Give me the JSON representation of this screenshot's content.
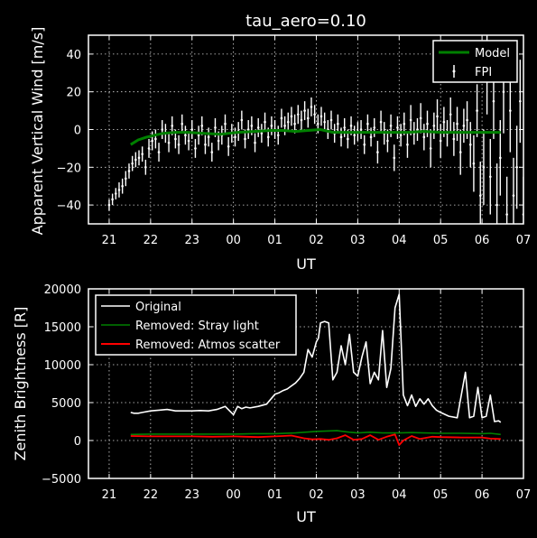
{
  "colors": {
    "background": "#000000",
    "foreground": "#ffffff",
    "model": "#008000",
    "fpi": "#ffffff",
    "original": "#ffffff",
    "stray": "#008000",
    "atmos": "#ff0000"
  },
  "chart_data": [
    {
      "type": "line",
      "title": "tau_aero=0.10",
      "xlabel": "UT",
      "ylabel": "Apparent Vertical Wind [m/s]",
      "xlim": [
        20.5,
        31
      ],
      "ylim": [
        -50,
        50
      ],
      "x_ticks": [
        21,
        22,
        23,
        24,
        25,
        26,
        27,
        28,
        29,
        30,
        31
      ],
      "x_tick_labels": [
        "21",
        "22",
        "23",
        "00",
        "01",
        "02",
        "03",
        "04",
        "05",
        "06",
        "07"
      ],
      "y_ticks": [
        -40,
        -20,
        0,
        20,
        40
      ],
      "y_tick_labels": [
        "−40",
        "−20",
        "0",
        "20",
        "40"
      ],
      "grid": true,
      "legend": "top-right",
      "legend_entries": [
        "Model",
        "FPI"
      ],
      "series": [
        {
          "name": "Model",
          "style": "line",
          "x": [
            21.52,
            21.7,
            21.9,
            22.1,
            22.3,
            22.6,
            22.9,
            23.3,
            23.7,
            24.1,
            24.5,
            24.9,
            25.2,
            25.5,
            25.8,
            26.1,
            26.4,
            26.7,
            27.0,
            27.4,
            27.8,
            28.2,
            28.6,
            29.0,
            29.4,
            29.8,
            30.2,
            30.45
          ],
          "y": [
            -8,
            -5.5,
            -4,
            -3,
            -2,
            -1.5,
            -1.5,
            -2,
            -2.5,
            -1.5,
            -1,
            -0.5,
            -0.5,
            -1,
            -0.5,
            0,
            -1.5,
            -1.5,
            -1.5,
            -1.5,
            -1.5,
            -1.5,
            -1,
            -1.5,
            -1.5,
            -1.5,
            -1.5,
            -1.5
          ]
        },
        {
          "name": "FPI",
          "style": "errorbar",
          "x": [
            21.0,
            21.08,
            21.16,
            21.24,
            21.32,
            21.4,
            21.48,
            21.56,
            21.64,
            21.72,
            21.8,
            21.88,
            21.96,
            22.04,
            22.12,
            22.2,
            22.28,
            22.36,
            22.44,
            22.52,
            22.6,
            22.68,
            22.76,
            22.84,
            22.92,
            23.0,
            23.08,
            23.16,
            23.24,
            23.32,
            23.4,
            23.48,
            23.56,
            23.64,
            23.72,
            23.8,
            23.88,
            23.96,
            24.04,
            24.12,
            24.2,
            24.28,
            24.36,
            24.44,
            24.52,
            24.6,
            24.68,
            24.76,
            24.84,
            24.92,
            25.0,
            25.08,
            25.16,
            25.24,
            25.32,
            25.4,
            25.48,
            25.56,
            25.64,
            25.72,
            25.8,
            25.88,
            25.96,
            26.04,
            26.12,
            26.2,
            26.28,
            26.36,
            26.44,
            26.52,
            26.6,
            26.68,
            26.76,
            26.84,
            26.92,
            27.0,
            27.08,
            27.16,
            27.24,
            27.32,
            27.4,
            27.48,
            27.56,
            27.64,
            27.72,
            27.8,
            27.88,
            27.96,
            28.04,
            28.12,
            28.2,
            28.28,
            28.36,
            28.44,
            28.52,
            28.6,
            28.68,
            28.76,
            28.84,
            28.92,
            29.0,
            29.08,
            29.16,
            29.24,
            29.32,
            29.4,
            29.48,
            29.56,
            29.64,
            29.72,
            29.8,
            29.88,
            29.96,
            30.04,
            30.12,
            30.2,
            30.28,
            30.36,
            30.44,
            30.52,
            30.6,
            30.68,
            30.76,
            30.84,
            30.92,
            31.0
          ],
          "y": [
            -40,
            -37,
            -34,
            -32,
            -30,
            -26,
            -22,
            -18,
            -16,
            -15,
            -13,
            -20,
            -10,
            -6,
            -5,
            -12,
            0,
            -2,
            -7,
            2,
            -5,
            -8,
            3,
            -3,
            -6,
            0,
            -10,
            -3,
            2,
            -8,
            -4,
            -12,
            1,
            -6,
            -3,
            3,
            -9,
            -2,
            -4,
            -1,
            5,
            -5,
            0,
            2,
            -7,
            1,
            -2,
            4,
            -4,
            2,
            0,
            -3,
            6,
            2,
            4,
            7,
            3,
            8,
            5,
            10,
            6,
            12,
            8,
            3,
            7,
            4,
            0,
            5,
            -2,
            3,
            -4,
            1,
            -5,
            2,
            -3,
            -1,
            0,
            -8,
            3,
            -4,
            1,
            -12,
            4,
            -2,
            -6,
            2,
            -15,
            1,
            -3,
            3,
            -8,
            5,
            -2,
            0,
            6,
            -4,
            3,
            -10,
            2,
            7,
            -6,
            4,
            -2,
            8,
            -5,
            3,
            -12,
            2,
            5,
            -8,
            -18,
            10,
            -35,
            -20,
            30,
            -25,
            15,
            -40,
            -15,
            20,
            -45,
            10,
            -35,
            -20,
            15,
            -45
          ],
          "err": [
            3,
            3,
            3,
            4,
            4,
            4,
            4,
            4,
            4,
            4,
            4,
            4,
            5,
            5,
            5,
            5,
            5,
            5,
            5,
            5,
            5,
            5,
            5,
            5,
            5,
            5,
            5,
            5,
            5,
            5,
            5,
            5,
            5,
            5,
            5,
            5,
            5,
            5,
            5,
            5,
            5,
            5,
            5,
            5,
            5,
            5,
            5,
            5,
            5,
            5,
            5,
            5,
            5,
            5,
            5,
            5,
            5,
            5,
            5,
            5,
            5,
            5,
            5,
            5,
            5,
            5,
            5,
            5,
            5,
            5,
            5,
            5,
            5,
            5,
            5,
            5,
            5,
            5,
            5,
            5,
            5,
            6,
            6,
            6,
            6,
            6,
            7,
            6,
            6,
            6,
            7,
            8,
            6,
            6,
            8,
            7,
            7,
            10,
            7,
            9,
            9,
            8,
            7,
            9,
            9,
            9,
            12,
            9,
            10,
            12,
            15,
            14,
            18,
            20,
            22,
            20,
            20,
            22,
            20,
            22,
            20,
            22,
            20,
            22,
            22,
            20
          ]
        }
      ]
    },
    {
      "type": "line",
      "title": "",
      "xlabel": "UT",
      "ylabel": "Zenith Brightness [R]",
      "xlim": [
        20.5,
        31
      ],
      "ylim": [
        -5000,
        20000
      ],
      "x_ticks": [
        21,
        22,
        23,
        24,
        25,
        26,
        27,
        28,
        29,
        30,
        31
      ],
      "x_tick_labels": [
        "21",
        "22",
        "23",
        "00",
        "01",
        "02",
        "03",
        "04",
        "05",
        "06",
        "07"
      ],
      "y_ticks": [
        -5000,
        0,
        5000,
        10000,
        15000,
        20000
      ],
      "y_tick_labels": [
        "−5000",
        "0",
        "5000",
        "10000",
        "15000",
        "20000"
      ],
      "grid": true,
      "legend": "top-left",
      "legend_entries": [
        "Original",
        "Removed: Stray light",
        "Removed: Atmos scatter"
      ],
      "series": [
        {
          "name": "Original",
          "x": [
            21.52,
            21.6,
            21.7,
            21.8,
            22.0,
            22.2,
            22.4,
            22.6,
            22.8,
            23.0,
            23.2,
            23.4,
            23.6,
            23.8,
            24.0,
            24.1,
            24.2,
            24.3,
            24.4,
            24.6,
            24.8,
            25.0,
            25.1,
            25.2,
            25.3,
            25.4,
            25.5,
            25.6,
            25.7,
            25.8,
            25.9,
            26.0,
            26.05,
            26.1,
            26.2,
            26.3,
            26.4,
            26.5,
            26.6,
            26.7,
            26.8,
            26.9,
            27.0,
            27.1,
            27.2,
            27.3,
            27.4,
            27.5,
            27.6,
            27.7,
            27.8,
            27.9,
            28.0,
            28.1,
            28.2,
            28.3,
            28.4,
            28.5,
            28.6,
            28.7,
            28.8,
            28.9,
            29.0,
            29.2,
            29.4,
            29.6,
            29.7,
            29.8,
            29.9,
            30.0,
            30.1,
            30.2,
            30.3,
            30.4,
            30.45
          ],
          "y": [
            3700,
            3600,
            3600,
            3700,
            3900,
            4000,
            4100,
            3900,
            3900,
            3900,
            3950,
            3900,
            4100,
            4500,
            3400,
            4500,
            4200,
            4400,
            4300,
            4500,
            4800,
            6100,
            6300,
            6600,
            6800,
            7200,
            7600,
            8200,
            9000,
            12000,
            11000,
            13000,
            13500,
            15500,
            15700,
            15500,
            8000,
            9000,
            12500,
            10000,
            14000,
            9000,
            8500,
            11000,
            13000,
            7500,
            9000,
            8000,
            14500,
            7000,
            9500,
            17500,
            19300,
            6000,
            4600,
            6000,
            4500,
            5500,
            4800,
            5500,
            4600,
            4000,
            3700,
            3200,
            3000,
            9000,
            3000,
            3200,
            7000,
            3000,
            3200,
            6000,
            2500,
            2600,
            2400
          ]
        },
        {
          "name": "Removed: Stray light",
          "x": [
            21.52,
            22.0,
            22.5,
            23.0,
            23.5,
            24.0,
            24.5,
            25.0,
            25.5,
            26.0,
            26.5,
            26.8,
            27.0,
            27.3,
            27.6,
            28.0,
            28.3,
            28.6,
            29.0,
            29.5,
            30.0,
            30.2,
            30.45
          ],
          "y": [
            800,
            850,
            850,
            850,
            850,
            850,
            900,
            900,
            1000,
            1200,
            1300,
            1100,
            1000,
            1100,
            1000,
            1000,
            1050,
            1000,
            950,
            950,
            900,
            950,
            800
          ]
        },
        {
          "name": "Removed: Atmos scatter",
          "x": [
            21.52,
            22.0,
            22.5,
            23.0,
            23.5,
            24.0,
            24.3,
            24.6,
            25.0,
            25.2,
            25.4,
            25.7,
            25.9,
            26.1,
            26.3,
            26.5,
            26.7,
            26.9,
            27.1,
            27.3,
            27.5,
            27.7,
            27.9,
            28.0,
            28.1,
            28.3,
            28.5,
            28.8,
            29.0,
            29.5,
            30.0,
            30.2,
            30.45
          ],
          "y": [
            600,
            550,
            550,
            550,
            500,
            550,
            500,
            450,
            550,
            600,
            650,
            300,
            150,
            200,
            100,
            300,
            700,
            100,
            200,
            700,
            100,
            500,
            800,
            -600,
            0,
            600,
            200,
            500,
            450,
            400,
            400,
            250,
            200
          ]
        }
      ]
    }
  ]
}
